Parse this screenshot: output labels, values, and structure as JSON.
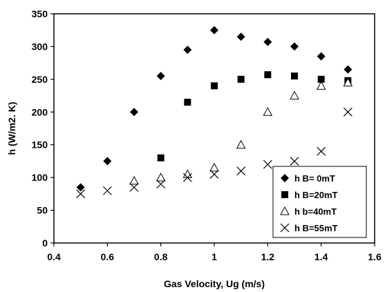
{
  "chart_data": {
    "type": "scatter",
    "title": "",
    "xlabel": "Gas Velocity, Ug (m/s)",
    "ylabel": "h (W/m2. K)",
    "xlim": [
      0.4,
      1.6
    ],
    "ylim": [
      0,
      350
    ],
    "xticks": [
      "0.4",
      "0.6",
      "0.8",
      "1",
      "1.2",
      "1.4",
      "1.6"
    ],
    "yticks": [
      "0",
      "50",
      "100",
      "150",
      "200",
      "250",
      "300",
      "350"
    ],
    "grid": false,
    "legend_position": "bottom-right",
    "series": [
      {
        "name": "h B= 0mT",
        "marker": "diamond",
        "points": [
          [
            0.5,
            85
          ],
          [
            0.6,
            125
          ],
          [
            0.7,
            200
          ],
          [
            0.8,
            255
          ],
          [
            0.9,
            295
          ],
          [
            1.0,
            325
          ],
          [
            1.1,
            315
          ],
          [
            1.2,
            307
          ],
          [
            1.3,
            300
          ],
          [
            1.4,
            285
          ],
          [
            1.5,
            265
          ]
        ]
      },
      {
        "name": "h B=20mT",
        "marker": "square",
        "points": [
          [
            0.8,
            130
          ],
          [
            0.9,
            215
          ],
          [
            1.0,
            240
          ],
          [
            1.1,
            250
          ],
          [
            1.2,
            257
          ],
          [
            1.3,
            255
          ],
          [
            1.4,
            250
          ],
          [
            1.5,
            248
          ]
        ]
      },
      {
        "name": "h b=40mT",
        "marker": "triangle",
        "points": [
          [
            0.7,
            95
          ],
          [
            0.8,
            100
          ],
          [
            0.9,
            105
          ],
          [
            1.0,
            115
          ],
          [
            1.1,
            150
          ],
          [
            1.2,
            200
          ],
          [
            1.3,
            225
          ],
          [
            1.4,
            240
          ],
          [
            1.5,
            245
          ]
        ]
      },
      {
        "name": "h B=55mT",
        "marker": "x",
        "points": [
          [
            0.5,
            75
          ],
          [
            0.6,
            80
          ],
          [
            0.7,
            85
          ],
          [
            0.8,
            90
          ],
          [
            0.9,
            100
          ],
          [
            1.0,
            105
          ],
          [
            1.1,
            110
          ],
          [
            1.2,
            120
          ],
          [
            1.3,
            125
          ],
          [
            1.4,
            140
          ],
          [
            1.5,
            200
          ]
        ]
      }
    ]
  }
}
